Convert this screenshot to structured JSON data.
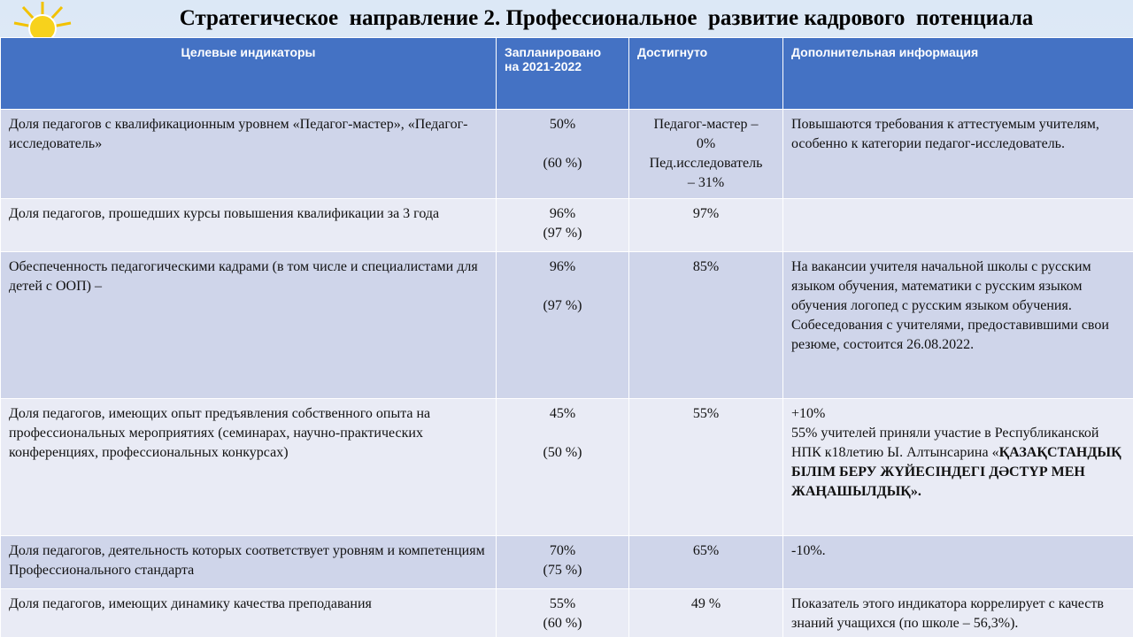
{
  "header": {
    "title": "Стратегическое  направление 2. Профессиональное  развитие кадрового  потенциала"
  },
  "table": {
    "columns": [
      "Целевые индикаторы",
      "Запланировано\nна 2021-2022",
      "Достигнуто",
      "Дополнительная информация"
    ],
    "rows": [
      {
        "indicator": "Доля педагогов с квалификационным уровнем «Педагог-мастер», «Педагог-исследователь»",
        "planned": "50%\n\n(60 %)",
        "achieved": "Педагог-мастер –\n0%\nПед.исследователь\n– 31%",
        "info": "Повышаются требования к аттестуемым учителям, особенно к категории педагог-исследователь."
      },
      {
        "indicator": "Доля педагогов, прошедших курсы повышения квалификации за 3 года",
        "planned": "96%\n(97 %)",
        "achieved": "97%",
        "info": ""
      },
      {
        "indicator": "Обеспеченность педагогическими кадрами (в том числе и специалистами для детей с ООП) –",
        "planned": "96%\n\n(97 %)",
        "achieved": "85%",
        "info": "На вакансии учителя начальной школы с русским языком обучения, математики с русским языком обучения логопед с русским языком обучения.\nСобеседования с учителями, предоставившими свои резюме, состоится 26.08.2022."
      },
      {
        "indicator": "Доля педагогов, имеющих опыт предъявления собственного опыта на профессиональных мероприятиях (семинарах, научно-практических конференциях, профессиональных конкурсах)",
        "planned": "45%\n\n(50 %)",
        "achieved": "55%",
        "info": "+10%\n55% учителей приняли участие в Республиканской НПК к18летию Ы. Алтынсарина «",
        "info_bold": "ҚАЗАҚСТАНДЫҚ БІЛІМ БЕРУ ЖҮЙЕСІНДЕГІ ДӘСТҮР МЕН ЖАҢАШЫЛДЫҚ»."
      },
      {
        "indicator": "Доля педагогов, деятельность которых соответствует уровням и компетенциям Профессионального стандарта",
        "planned": "70%\n(75 %)",
        "achieved": "65%",
        "info": "-10%."
      },
      {
        "indicator": "Доля педагогов, имеющих динамику качества преподавания",
        "planned": "55%\n(60 %)",
        "achieved": "49 %",
        "info": "Показатель этого индикатора коррелирует с качеств знаний учащихся (по школе – 56,3%)."
      }
    ]
  }
}
